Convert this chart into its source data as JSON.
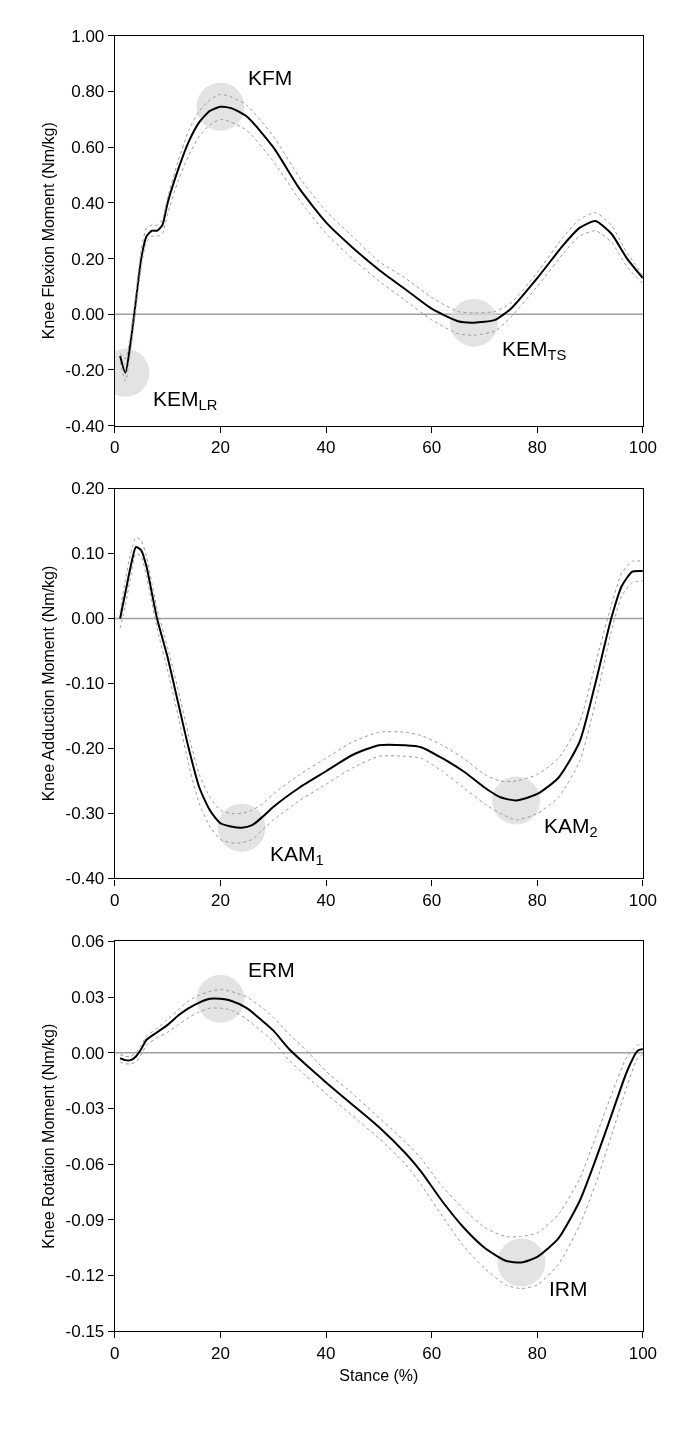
{
  "chart_data": [
    {
      "type": "line",
      "ylabel": "Knee Flexion Moment (Nm/kg)",
      "xlim": [
        0,
        100
      ],
      "xticks": [
        0,
        20,
        40,
        60,
        80,
        100
      ],
      "ylim": [
        -0.4,
        1.0
      ],
      "yticks": [
        {
          "value": -0.4,
          "label": "-0.40"
        },
        {
          "value": -0.2,
          "label": "-0.20"
        },
        {
          "value": 0,
          "label": "0.00"
        },
        {
          "value": 0.2,
          "label": "0.20"
        },
        {
          "value": 0.4,
          "label": "0.40"
        },
        {
          "value": 0.6,
          "label": "0.60"
        },
        {
          "value": 0.8,
          "label": "0.80"
        },
        {
          "value": 1.0,
          "label": "1.00"
        }
      ],
      "grid": false,
      "x": [
        1,
        2,
        3,
        4,
        5,
        6,
        7,
        8,
        9,
        10,
        12,
        14,
        16,
        18,
        20,
        22,
        25,
        30,
        35,
        40,
        45,
        50,
        55,
        60,
        65,
        68,
        72,
        75,
        80,
        85,
        88,
        91,
        94,
        97,
        100
      ],
      "series": [
        {
          "color": "#000000",
          "values": [
            -0.15,
            -0.21,
            -0.1,
            0.05,
            0.2,
            0.28,
            0.3,
            0.3,
            0.32,
            0.4,
            0.52,
            0.62,
            0.69,
            0.73,
            0.745,
            0.74,
            0.71,
            0.6,
            0.45,
            0.33,
            0.24,
            0.16,
            0.09,
            0.02,
            -0.025,
            -0.03,
            -0.02,
            0.02,
            0.13,
            0.25,
            0.31,
            0.335,
            0.29,
            0.2,
            0.13
          ],
          "line_style": "solid"
        },
        {
          "color": "#9a9a9a",
          "line_style": "dotted",
          "values": [
            -0.17,
            -0.24,
            -0.13,
            0.02,
            0.17,
            0.26,
            0.28,
            0.28,
            0.29,
            0.36,
            0.48,
            0.57,
            0.64,
            0.68,
            0.7,
            0.69,
            0.66,
            0.55,
            0.41,
            0.29,
            0.2,
            0.12,
            0.05,
            -0.02,
            -0.07,
            -0.075,
            -0.06,
            -0.01,
            0.1,
            0.22,
            0.28,
            0.3,
            0.26,
            0.17,
            0.11
          ]
        },
        {
          "color": "#9a9a9a",
          "line_style": "dotted",
          "values": [
            -0.14,
            -0.16,
            -0.07,
            0.08,
            0.23,
            0.31,
            0.32,
            0.32,
            0.34,
            0.42,
            0.55,
            0.66,
            0.73,
            0.77,
            0.79,
            0.78,
            0.75,
            0.64,
            0.49,
            0.37,
            0.28,
            0.19,
            0.13,
            0.06,
            0.01,
            0.005,
            0.01,
            0.04,
            0.15,
            0.28,
            0.34,
            0.365,
            0.32,
            0.22,
            0.14
          ]
        }
      ],
      "ref_lines": [
        {
          "axis": "y",
          "value": 0,
          "color": "#a0a0a0"
        }
      ],
      "annotations": [
        {
          "text": "KFM",
          "x": 20,
          "y": 0.745
        },
        {
          "text": "KEM$_{LR}$",
          "x": 2,
          "y": -0.21
        },
        {
          "text": "KEM$_{TS}$",
          "x": 68,
          "y": -0.03
        }
      ]
    },
    {
      "type": "line",
      "ylabel": "Knee Adduction Moment (Nm/kg)",
      "xlim": [
        0,
        100
      ],
      "xticks": [
        0,
        20,
        40,
        60,
        80,
        100
      ],
      "ylim": [
        -0.4,
        0.2
      ],
      "yticks": [
        {
          "value": -0.4,
          "label": "-0.40"
        },
        {
          "value": -0.3,
          "label": "-0.30"
        },
        {
          "value": -0.2,
          "label": "-0.20"
        },
        {
          "value": -0.1,
          "label": "-0.10"
        },
        {
          "value": 0,
          "label": "0.00"
        },
        {
          "value": 0.1,
          "label": "0.10"
        },
        {
          "value": 0.2,
          "label": "0.20"
        }
      ],
      "grid": false,
      "x": [
        1,
        2,
        3,
        4,
        5,
        6,
        7,
        8,
        10,
        12,
        14,
        16,
        18,
        20,
        22,
        24,
        26,
        28,
        30,
        35,
        40,
        45,
        50,
        55,
        58,
        62,
        66,
        70,
        73,
        76,
        80,
        84,
        88,
        91,
        94,
        96,
        98,
        100
      ],
      "series": [
        {
          "color": "#000000",
          "values": [
            0.0,
            0.04,
            0.08,
            0.11,
            0.105,
            0.08,
            0.04,
            0.0,
            -0.06,
            -0.13,
            -0.2,
            -0.26,
            -0.295,
            -0.315,
            -0.32,
            -0.322,
            -0.318,
            -0.305,
            -0.29,
            -0.26,
            -0.235,
            -0.21,
            -0.195,
            -0.195,
            -0.198,
            -0.215,
            -0.235,
            -0.26,
            -0.275,
            -0.28,
            -0.27,
            -0.245,
            -0.19,
            -0.1,
            0.0,
            0.05,
            0.072,
            0.073
          ],
          "line_style": "solid"
        },
        {
          "color": "#9a9a9a",
          "line_style": "dotted",
          "values": [
            -0.015,
            0.02,
            0.065,
            0.1,
            0.095,
            0.065,
            0.025,
            -0.015,
            -0.08,
            -0.15,
            -0.225,
            -0.285,
            -0.32,
            -0.34,
            -0.345,
            -0.345,
            -0.34,
            -0.325,
            -0.31,
            -0.28,
            -0.255,
            -0.23,
            -0.212,
            -0.212,
            -0.215,
            -0.235,
            -0.26,
            -0.285,
            -0.3,
            -0.31,
            -0.3,
            -0.275,
            -0.22,
            -0.13,
            -0.02,
            0.035,
            0.055,
            0.058
          ]
        },
        {
          "color": "#9a9a9a",
          "line_style": "dotted",
          "values": [
            0.01,
            0.06,
            0.1,
            0.125,
            0.12,
            0.095,
            0.055,
            0.015,
            -0.045,
            -0.11,
            -0.18,
            -0.24,
            -0.275,
            -0.295,
            -0.3,
            -0.3,
            -0.295,
            -0.285,
            -0.27,
            -0.24,
            -0.215,
            -0.19,
            -0.175,
            -0.175,
            -0.18,
            -0.195,
            -0.215,
            -0.24,
            -0.25,
            -0.25,
            -0.24,
            -0.215,
            -0.16,
            -0.07,
            0.02,
            0.07,
            0.088,
            0.088
          ]
        }
      ],
      "ref_lines": [
        {
          "axis": "y",
          "value": 0,
          "color": "#a0a0a0"
        }
      ],
      "annotations": [
        {
          "text": "KAM$_{1}$",
          "x": 24,
          "y": -0.322
        },
        {
          "text": "KAM$_{2}$",
          "x": 76,
          "y": -0.28
        }
      ]
    },
    {
      "type": "line",
      "xlabel": "Stance (%)",
      "ylabel": "Knee Rotation Moment (Nm/kg)",
      "xlim": [
        0,
        100
      ],
      "xticks": [
        0,
        20,
        40,
        60,
        80,
        100
      ],
      "ylim": [
        -0.15,
        0.06
      ],
      "yticks": [
        {
          "value": -0.15,
          "label": "-0.15"
        },
        {
          "value": -0.12,
          "label": "-0.12"
        },
        {
          "value": -0.09,
          "label": "-0.09"
        },
        {
          "value": -0.06,
          "label": "-0.06"
        },
        {
          "value": -0.03,
          "label": "-0.03"
        },
        {
          "value": 0,
          "label": "0.00"
        },
        {
          "value": 0.03,
          "label": "0.03"
        },
        {
          "value": 0.06,
          "label": "0.06"
        }
      ],
      "grid": false,
      "x": [
        1,
        2,
        3,
        4,
        5,
        6,
        8,
        10,
        12,
        14,
        16,
        18,
        20,
        22,
        25,
        28,
        30,
        33,
        36,
        40,
        45,
        50,
        55,
        58,
        62,
        66,
        70,
        74,
        77,
        80,
        84,
        88,
        91,
        94,
        97,
        99,
        100
      ],
      "series": [
        {
          "color": "#000000",
          "values": [
            -0.003,
            -0.004,
            -0.004,
            -0.002,
            0.002,
            0.007,
            0.011,
            0.015,
            0.02,
            0.024,
            0.027,
            0.029,
            0.029,
            0.028,
            0.024,
            0.017,
            0.012,
            0.002,
            -0.006,
            -0.016,
            -0.028,
            -0.04,
            -0.054,
            -0.064,
            -0.08,
            -0.094,
            -0.105,
            -0.112,
            -0.113,
            -0.11,
            -0.1,
            -0.08,
            -0.058,
            -0.034,
            -0.01,
            0.001,
            0.002
          ],
          "line_style": "solid"
        },
        {
          "color": "#9a9a9a",
          "line_style": "dotted",
          "values": [
            -0.005,
            -0.006,
            -0.006,
            -0.005,
            -0.001,
            0.004,
            0.008,
            0.011,
            0.015,
            0.019,
            0.022,
            0.024,
            0.024,
            0.023,
            0.018,
            0.011,
            0.006,
            -0.004,
            -0.012,
            -0.022,
            -0.034,
            -0.046,
            -0.06,
            -0.071,
            -0.088,
            -0.104,
            -0.116,
            -0.125,
            -0.127,
            -0.125,
            -0.114,
            -0.093,
            -0.071,
            -0.045,
            -0.018,
            -0.003,
            -0.001
          ]
        },
        {
          "color": "#9a9a9a",
          "line_style": "dotted",
          "values": [
            -0.001,
            -0.002,
            -0.002,
            0.0,
            0.004,
            0.009,
            0.013,
            0.018,
            0.023,
            0.028,
            0.031,
            0.033,
            0.034,
            0.033,
            0.03,
            0.024,
            0.019,
            0.01,
            0.002,
            -0.01,
            -0.022,
            -0.035,
            -0.048,
            -0.057,
            -0.072,
            -0.084,
            -0.094,
            -0.099,
            -0.099,
            -0.097,
            -0.087,
            -0.068,
            -0.046,
            -0.023,
            -0.002,
            0.004,
            0.005
          ]
        }
      ],
      "ref_lines": [
        {
          "axis": "y",
          "value": 0,
          "color": "#a0a0a0"
        }
      ],
      "annotations": [
        {
          "text": "ERM",
          "x": 20,
          "y": 0.029
        },
        {
          "text": "IRM",
          "x": 77,
          "y": -0.113
        }
      ]
    }
  ]
}
